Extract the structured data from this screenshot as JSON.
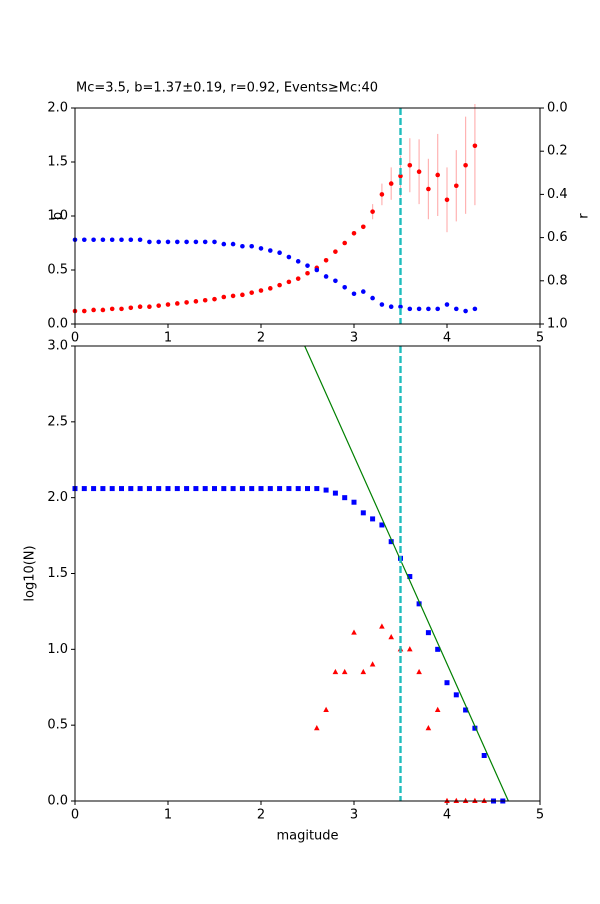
{
  "chart_data": [
    {
      "type": "scatter",
      "title": "Mc=3.5, b=1.37±0.19, r=0.92, Events≥Mc:40",
      "ylabel": "b",
      "y2label": "r",
      "xlim": [
        0,
        5
      ],
      "xticks": [
        0,
        1,
        2,
        3,
        4,
        5
      ],
      "ylim": [
        0,
        2
      ],
      "yticks": [
        {
          "value": 0,
          "label": "0.0"
        },
        {
          "value": 0.5,
          "label": "0.5"
        },
        {
          "value": 1,
          "label": "1.0"
        },
        {
          "value": 1.5,
          "label": "1.5"
        },
        {
          "value": 2,
          "label": "2.0"
        }
      ],
      "y2lim": [
        1,
        0
      ],
      "y2ticks": [
        {
          "value": 0,
          "label": "0.0"
        },
        {
          "value": 0.2,
          "label": "0.2"
        },
        {
          "value": 0.4,
          "label": "0.4"
        },
        {
          "value": 0.6,
          "label": "0.6"
        },
        {
          "value": 0.8,
          "label": "0.8"
        },
        {
          "value": 1,
          "label": "1.0"
        }
      ],
      "vline": {
        "x": 3.5,
        "color": "#1ebdbd"
      },
      "series": [
        {
          "color": "#ff0000",
          "marker": "circle",
          "error_color": "#ffb3b3",
          "x": [
            0,
            0.1,
            0.2,
            0.3,
            0.4,
            0.5,
            0.6,
            0.7,
            0.8,
            0.9,
            1,
            1.1,
            1.2,
            1.3,
            1.4,
            1.5,
            1.6,
            1.7,
            1.8,
            1.9,
            2,
            2.1,
            2.2,
            2.3,
            2.4,
            2.5,
            2.6,
            2.7,
            2.8,
            2.9,
            3,
            3.1,
            3.2,
            3.3,
            3.4,
            3.5,
            3.6,
            3.7,
            3.8,
            3.9,
            4,
            4.1,
            4.2,
            4.3
          ],
          "values": [
            0.12,
            0.12,
            0.13,
            0.13,
            0.14,
            0.14,
            0.15,
            0.16,
            0.16,
            0.17,
            0.18,
            0.19,
            0.2,
            0.21,
            0.22,
            0.23,
            0.25,
            0.26,
            0.27,
            0.29,
            0.31,
            0.33,
            0.36,
            0.39,
            0.42,
            0.47,
            0.52,
            0.59,
            0.67,
            0.75,
            0.84,
            0.9,
            1.04,
            1.2,
            1.3,
            1.37,
            1.47,
            1.41,
            1.25,
            1.38,
            1.15,
            1.28,
            1.47,
            1.65
          ],
          "errors": [
            null,
            null,
            null,
            null,
            null,
            null,
            null,
            null,
            null,
            null,
            null,
            null,
            null,
            null,
            null,
            null,
            null,
            null,
            null,
            null,
            null,
            null,
            null,
            null,
            null,
            null,
            null,
            null,
            null,
            null,
            null,
            null,
            0.07,
            0.1,
            0.15,
            0.19,
            0.25,
            0.3,
            0.28,
            0.38,
            0.3,
            0.33,
            0.45,
            0.55
          ]
        },
        {
          "color": "#0000ff",
          "marker": "circle",
          "axis": "y2",
          "x": [
            0,
            0.1,
            0.2,
            0.3,
            0.4,
            0.5,
            0.6,
            0.7,
            0.8,
            0.9,
            1,
            1.1,
            1.2,
            1.3,
            1.4,
            1.5,
            1.6,
            1.7,
            1.8,
            1.9,
            2,
            2.1,
            2.2,
            2.3,
            2.4,
            2.5,
            2.6,
            2.7,
            2.8,
            2.9,
            3,
            3.1,
            3.2,
            3.3,
            3.4,
            3.5,
            3.6,
            3.7,
            3.8,
            3.9,
            4,
            4.1,
            4.2,
            4.3
          ],
          "values": [
            0.61,
            0.61,
            0.61,
            0.61,
            0.61,
            0.61,
            0.61,
            0.61,
            0.62,
            0.62,
            0.62,
            0.62,
            0.62,
            0.62,
            0.62,
            0.62,
            0.63,
            0.63,
            0.64,
            0.64,
            0.65,
            0.66,
            0.67,
            0.69,
            0.71,
            0.73,
            0.75,
            0.78,
            0.8,
            0.83,
            0.86,
            0.85,
            0.88,
            0.91,
            0.92,
            0.92,
            0.93,
            0.93,
            0.93,
            0.93,
            0.91,
            0.93,
            0.94,
            0.93
          ]
        }
      ]
    },
    {
      "type": "scatter",
      "xlabel": "magitude",
      "ylabel": "log10(N)",
      "xlim": [
        0,
        5
      ],
      "xticks": [
        0,
        1,
        2,
        3,
        4,
        5
      ],
      "ylim": [
        0,
        3
      ],
      "yticks": [
        {
          "value": 0,
          "label": "0.0"
        },
        {
          "value": 0.5,
          "label": "0.5"
        },
        {
          "value": 1,
          "label": "1.0"
        },
        {
          "value": 1.5,
          "label": "1.5"
        },
        {
          "value": 2,
          "label": "2.0"
        },
        {
          "value": 2.5,
          "label": "2.5"
        },
        {
          "value": 3,
          "label": "3.0"
        }
      ],
      "vline": {
        "x": 3.5,
        "color": "#1ebdbd"
      },
      "series": [
        {
          "color": "#0000ff",
          "marker": "square",
          "x": [
            0,
            0.1,
            0.2,
            0.3,
            0.4,
            0.5,
            0.6,
            0.7,
            0.8,
            0.9,
            1,
            1.1,
            1.2,
            1.3,
            1.4,
            1.5,
            1.6,
            1.7,
            1.8,
            1.9,
            2,
            2.1,
            2.2,
            2.3,
            2.4,
            2.5,
            2.6,
            2.7,
            2.8,
            2.9,
            3,
            3.1,
            3.2,
            3.3,
            3.4,
            3.5,
            3.6,
            3.7,
            3.8,
            3.9,
            4,
            4.1,
            4.2,
            4.3,
            4.4,
            4.5,
            4.6
          ],
          "values": [
            2.06,
            2.06,
            2.06,
            2.06,
            2.06,
            2.06,
            2.06,
            2.06,
            2.06,
            2.06,
            2.06,
            2.06,
            2.06,
            2.06,
            2.06,
            2.06,
            2.06,
            2.06,
            2.06,
            2.06,
            2.06,
            2.06,
            2.06,
            2.06,
            2.06,
            2.06,
            2.06,
            2.05,
            2.03,
            2.0,
            1.97,
            1.9,
            1.86,
            1.82,
            1.71,
            1.6,
            1.48,
            1.3,
            1.11,
            1.0,
            0.78,
            0.7,
            0.6,
            0.48,
            0.3,
            0,
            0
          ]
        },
        {
          "color": "#ff0000",
          "marker": "triangle",
          "x": [
            2.6,
            2.7,
            2.8,
            2.9,
            3,
            3.1,
            3.2,
            3.3,
            3.4,
            3.5,
            3.6,
            3.7,
            3.8,
            3.9,
            4,
            4.1,
            4.2,
            4.3,
            4.4
          ],
          "values": [
            0.48,
            0.6,
            0.85,
            0.85,
            1.11,
            0.85,
            0.9,
            1.15,
            1.08,
            1.0,
            1.0,
            0.85,
            0.48,
            0.6,
            0,
            0,
            0,
            0,
            0
          ]
        },
        {
          "color": "#008000",
          "marker": "line",
          "x": [
            2.47,
            4.66
          ],
          "values": [
            3,
            0
          ]
        }
      ]
    }
  ]
}
